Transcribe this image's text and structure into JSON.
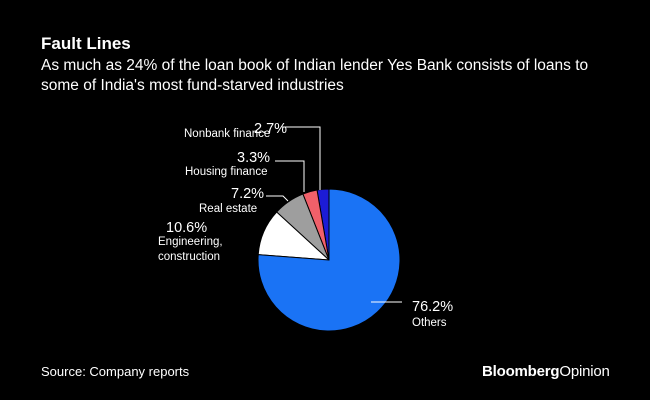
{
  "header": {
    "title": "Fault Lines",
    "subtitle": "As much as 24% of the loan book of Indian lender Yes Bank consists of loans to some of India's most fund-starved industries"
  },
  "footer": {
    "source": "Source: Company reports",
    "brand_bold": "Bloomberg",
    "brand_light": "Opinion"
  },
  "colors": {
    "background": "#000000",
    "others": "#1a73f5",
    "engineering": "#ffffff",
    "real_estate": "#9e9e9e",
    "housing": "#f0606a",
    "nonbank": "#1c1cd6"
  },
  "chart_data": {
    "type": "pie",
    "title": "Fault Lines",
    "unit": "%",
    "slices": [
      {
        "name": "Nonbank finance",
        "value": 2.7,
        "label": "2.7%",
        "lines": [
          "Nonbank finance"
        ],
        "color": "#1c1cd6"
      },
      {
        "name": "Housing finance",
        "value": 3.3,
        "label": "3.3%",
        "lines": [
          "Housing finance"
        ],
        "color": "#f0606a"
      },
      {
        "name": "Real estate",
        "value": 7.2,
        "label": "7.2%",
        "lines": [
          "Real estate"
        ],
        "color": "#9e9e9e"
      },
      {
        "name": "Engineering, construction",
        "value": 10.6,
        "label": "10.6%",
        "lines": [
          "Engineering,",
          "construction"
        ],
        "color": "#ffffff"
      },
      {
        "name": "Others",
        "value": 76.2,
        "label": "76.2%",
        "lines": [
          "Others"
        ],
        "color": "#1a73f5"
      }
    ]
  }
}
